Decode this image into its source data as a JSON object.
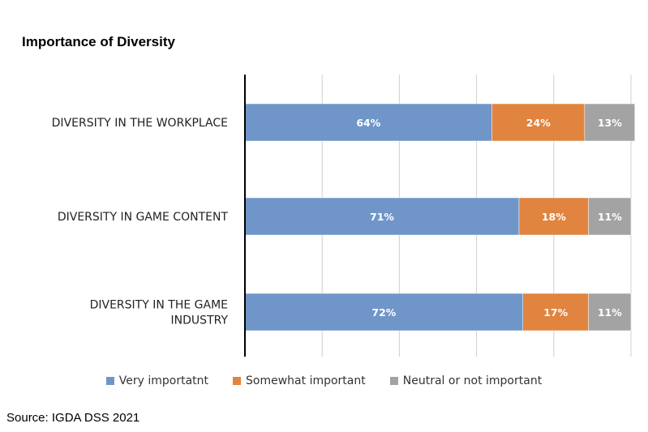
{
  "chart_data": {
    "type": "bar",
    "orientation": "horizontal",
    "stacked": true,
    "title": "Importance of Diversity",
    "categories": [
      "DIVERSITY IN THE WORKPLACE",
      "DIVERSITY IN GAME CONTENT",
      "DIVERSITY IN THE GAME INDUSTRY"
    ],
    "category_lines": [
      [
        "DIVERSITY IN THE WORKPLACE"
      ],
      [
        "DIVERSITY IN GAME CONTENT"
      ],
      [
        "DIVERSITY IN THE GAME",
        "INDUSTRY"
      ]
    ],
    "series": [
      {
        "name": "Very importatnt",
        "color": "#7096c9",
        "values": [
          64,
          71,
          72
        ],
        "labels": [
          "64%",
          "71%",
          "72%"
        ]
      },
      {
        "name": "Somewhat important",
        "color": "#e0843f",
        "values": [
          24,
          18,
          17
        ],
        "labels": [
          "24%",
          "18%",
          "17%"
        ]
      },
      {
        "name": "Neutral or not important",
        "color": "#a3a3a3",
        "values": [
          13,
          11,
          11
        ],
        "labels": [
          "13%",
          "11%",
          "11%"
        ]
      }
    ],
    "xlim": [
      0,
      100
    ],
    "grid": true,
    "legend_position": "bottom"
  },
  "source": "Source: IGDA DSS 2021"
}
